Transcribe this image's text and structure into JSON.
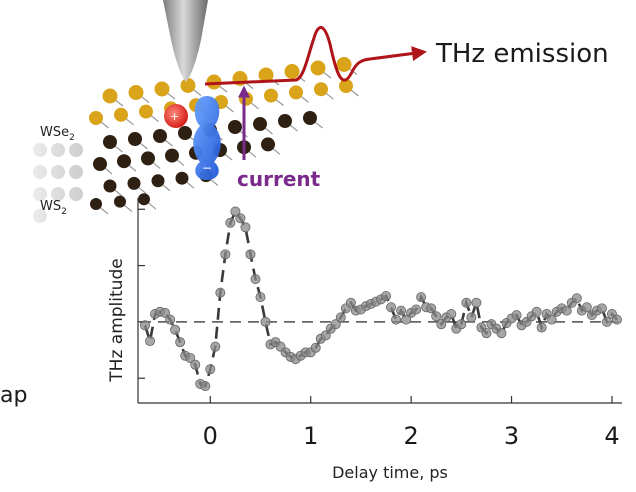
{
  "labels": {
    "thz_emission": "THz emission",
    "current": "current",
    "layer_top": "WSe",
    "layer_top_sub": "2",
    "layer_bottom": "WS",
    "layer_bottom_sub": "2",
    "edge_fragment": "ap"
  },
  "colors": {
    "wave": "#b0141b",
    "current_arrow": "#7a2a8a",
    "electron": "#e8322e",
    "hole": "#2f6ff0",
    "se_atom": "#d9a419",
    "s_atom": "#2e2012",
    "dots": "#8a8a8a",
    "fit_line": "#3a3a3a"
  },
  "chart_data": {
    "type": "scatter",
    "xlabel": "Delay time, ps",
    "ylabel": "THz amplitude",
    "xlim": [
      -0.7,
      4.1
    ],
    "ylim": [
      -0.72,
      1.1
    ],
    "x_ticks": [
      0,
      1,
      2,
      3,
      4
    ],
    "x_tick_labels": [
      "0",
      "1",
      "2",
      "3",
      "4"
    ],
    "zero_line": true,
    "points": [
      [
        -0.65,
        -0.03
      ],
      [
        -0.6,
        -0.17
      ],
      [
        -0.55,
        0.07
      ],
      [
        -0.5,
        0.09
      ],
      [
        -0.45,
        0.08
      ],
      [
        -0.4,
        0.02
      ],
      [
        -0.35,
        -0.07
      ],
      [
        -0.3,
        -0.18
      ],
      [
        -0.25,
        -0.3
      ],
      [
        -0.2,
        -0.32
      ],
      [
        -0.15,
        -0.38
      ],
      [
        -0.1,
        -0.55
      ],
      [
        -0.05,
        -0.57
      ],
      [
        0.0,
        -0.42
      ],
      [
        0.05,
        -0.22
      ],
      [
        0.1,
        0.26
      ],
      [
        0.15,
        0.6
      ],
      [
        0.2,
        0.88
      ],
      [
        0.25,
        0.98
      ],
      [
        0.3,
        0.92
      ],
      [
        0.35,
        0.84
      ],
      [
        0.4,
        0.6
      ],
      [
        0.45,
        0.38
      ],
      [
        0.5,
        0.22
      ],
      [
        0.55,
        0.0
      ],
      [
        0.6,
        -0.2
      ],
      [
        0.65,
        -0.18
      ],
      [
        0.7,
        -0.22
      ],
      [
        0.75,
        -0.27
      ],
      [
        0.8,
        -0.31
      ],
      [
        0.85,
        -0.33
      ],
      [
        0.9,
        -0.3
      ],
      [
        0.95,
        -0.27
      ],
      [
        1.0,
        -0.27
      ],
      [
        1.05,
        -0.23
      ],
      [
        1.1,
        -0.15
      ],
      [
        1.15,
        -0.12
      ],
      [
        1.2,
        -0.06
      ],
      [
        1.25,
        -0.02
      ],
      [
        1.3,
        0.04
      ],
      [
        1.35,
        0.12
      ],
      [
        1.4,
        0.17
      ],
      [
        1.45,
        0.1
      ],
      [
        1.5,
        0.11
      ],
      [
        1.55,
        0.14
      ],
      [
        1.6,
        0.16
      ],
      [
        1.65,
        0.18
      ],
      [
        1.7,
        0.2
      ],
      [
        1.75,
        0.23
      ],
      [
        1.8,
        0.13
      ],
      [
        1.85,
        0.02
      ],
      [
        1.9,
        0.1
      ],
      [
        1.95,
        0.02
      ],
      [
        2.0,
        0.08
      ],
      [
        2.05,
        0.11
      ],
      [
        2.1,
        0.22
      ],
      [
        2.15,
        0.13
      ],
      [
        2.2,
        0.12
      ],
      [
        2.25,
        0.05
      ],
      [
        2.3,
        -0.02
      ],
      [
        2.35,
        0.04
      ],
      [
        2.4,
        0.07
      ],
      [
        2.45,
        -0.06
      ],
      [
        2.5,
        -0.02
      ],
      [
        2.55,
        0.17
      ],
      [
        2.6,
        0.04
      ],
      [
        2.65,
        0.17
      ],
      [
        2.7,
        -0.05
      ],
      [
        2.75,
        -0.1
      ],
      [
        2.8,
        -0.02
      ],
      [
        2.85,
        -0.06
      ],
      [
        2.9,
        -0.1
      ],
      [
        2.95,
        -0.01
      ],
      [
        3.0,
        0.03
      ],
      [
        3.05,
        0.06
      ],
      [
        3.1,
        -0.03
      ],
      [
        3.15,
        0.0
      ],
      [
        3.2,
        0.05
      ],
      [
        3.25,
        0.09
      ],
      [
        3.3,
        -0.05
      ],
      [
        3.35,
        0.07
      ],
      [
        3.4,
        0.02
      ],
      [
        3.45,
        0.09
      ],
      [
        3.5,
        0.12
      ],
      [
        3.55,
        0.1
      ],
      [
        3.6,
        0.17
      ],
      [
        3.65,
        0.21
      ],
      [
        3.7,
        0.1
      ],
      [
        3.75,
        0.13
      ],
      [
        3.8,
        0.06
      ],
      [
        3.85,
        0.1
      ],
      [
        3.9,
        0.12
      ],
      [
        3.95,
        0.0
      ],
      [
        4.0,
        0.07
      ],
      [
        4.05,
        0.02
      ]
    ]
  }
}
